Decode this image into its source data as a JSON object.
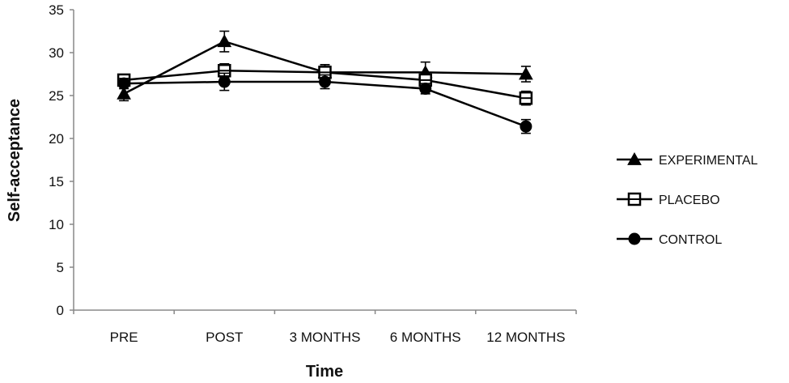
{
  "chart_data": {
    "type": "line",
    "title": "",
    "xlabel": "Time",
    "ylabel": "Self-acceptance",
    "categories": [
      "PRE",
      "POST",
      "3 MONTHS",
      "6 MONTHS",
      "12 MONTHS"
    ],
    "ylim": [
      0,
      35
    ],
    "yticks": [
      0,
      5,
      10,
      15,
      20,
      25,
      30,
      35
    ],
    "grid": false,
    "legend_position": "right",
    "series": [
      {
        "name": "EXPERIMENTAL",
        "marker": "filled-triangle",
        "color": "#000000",
        "values": [
          25.2,
          31.3,
          27.7,
          27.7,
          27.5
        ],
        "error": [
          0.8,
          1.2,
          0.9,
          1.2,
          0.9
        ]
      },
      {
        "name": "PLACEBO",
        "marker": "open-square",
        "color": "#000000",
        "values": [
          26.8,
          27.9,
          27.7,
          26.8,
          24.7
        ],
        "error": [
          0.6,
          0.8,
          0.9,
          0.9,
          0.8
        ]
      },
      {
        "name": "CONTROL",
        "marker": "filled-circle",
        "color": "#000000",
        "values": [
          26.4,
          26.6,
          26.6,
          25.8,
          21.4
        ],
        "error": [
          0.6,
          1.0,
          0.8,
          0.6,
          0.8
        ]
      }
    ]
  }
}
